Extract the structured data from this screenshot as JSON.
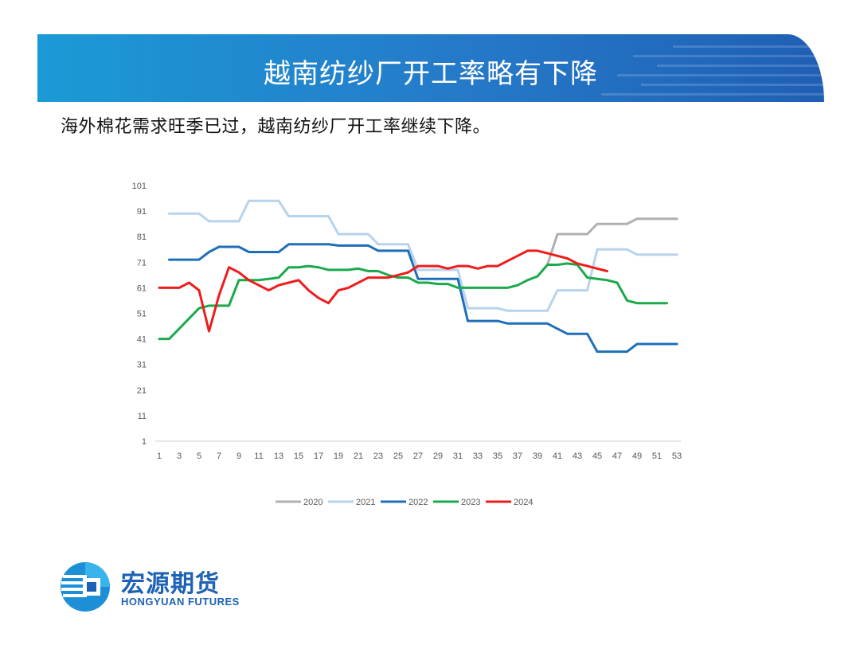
{
  "header": {
    "title": "越南纺纱厂开工率略有下降",
    "subtitle": "海外棉花需求旺季已过，越南纺纱厂开工率继续下降。"
  },
  "logo": {
    "name_cn": "宏源期货",
    "name_en": "HONGYUAN FUTURES"
  },
  "colors": {
    "banner": "#1f7fcf",
    "brand": "#1d62b5"
  },
  "chart_data": {
    "type": "line",
    "title": "",
    "xlabel": "",
    "ylabel": "",
    "ylim": [
      1,
      101
    ],
    "yticks": [
      1,
      11,
      21,
      31,
      41,
      51,
      61,
      71,
      81,
      91,
      101
    ],
    "xlim": [
      1,
      53
    ],
    "xticks": [
      1,
      3,
      5,
      7,
      9,
      11,
      13,
      15,
      17,
      19,
      21,
      23,
      25,
      27,
      29,
      31,
      33,
      35,
      37,
      39,
      41,
      43,
      45,
      47,
      49,
      51,
      53
    ],
    "grid": false,
    "legend": "bottom",
    "series": [
      {
        "name": "2020",
        "color": "#b0b0b0",
        "points": [
          [
            40,
            70
          ],
          [
            41,
            82
          ],
          [
            42,
            82
          ],
          [
            43,
            82
          ],
          [
            44,
            82
          ],
          [
            45,
            86
          ],
          [
            46,
            86
          ],
          [
            47,
            86
          ],
          [
            48,
            86
          ],
          [
            49,
            88
          ],
          [
            50,
            88
          ],
          [
            51,
            88
          ],
          [
            52,
            88
          ],
          [
            53,
            88
          ]
        ]
      },
      {
        "name": "2021",
        "color": "#b7d3ee",
        "points": [
          [
            2,
            90
          ],
          [
            3,
            90
          ],
          [
            4,
            90
          ],
          [
            5,
            90
          ],
          [
            6,
            87
          ],
          [
            7,
            87
          ],
          [
            8,
            87
          ],
          [
            9,
            87
          ],
          [
            10,
            95
          ],
          [
            11,
            95
          ],
          [
            12,
            95
          ],
          [
            13,
            95
          ],
          [
            14,
            89
          ],
          [
            15,
            89
          ],
          [
            16,
            89
          ],
          [
            17,
            89
          ],
          [
            18,
            89
          ],
          [
            19,
            82
          ],
          [
            20,
            82
          ],
          [
            21,
            82
          ],
          [
            22,
            82
          ],
          [
            23,
            78
          ],
          [
            24,
            78
          ],
          [
            25,
            78
          ],
          [
            26,
            78
          ],
          [
            27,
            68
          ],
          [
            28,
            68
          ],
          [
            29,
            68
          ],
          [
            30,
            68
          ],
          [
            31,
            68
          ],
          [
            32,
            53
          ],
          [
            33,
            53
          ],
          [
            34,
            53
          ],
          [
            35,
            53
          ],
          [
            36,
            52
          ],
          [
            37,
            52
          ],
          [
            38,
            52
          ],
          [
            39,
            52
          ],
          [
            40,
            52
          ],
          [
            41,
            60
          ],
          [
            42,
            60
          ],
          [
            43,
            60
          ],
          [
            44,
            60
          ],
          [
            45,
            76
          ],
          [
            46,
            76
          ],
          [
            47,
            76
          ],
          [
            48,
            76
          ],
          [
            49,
            74
          ],
          [
            50,
            74
          ],
          [
            51,
            74
          ],
          [
            52,
            74
          ],
          [
            53,
            74
          ]
        ]
      },
      {
        "name": "2022",
        "color": "#1f6fb8",
        "points": [
          [
            2,
            72
          ],
          [
            3,
            72
          ],
          [
            4,
            72
          ],
          [
            5,
            72
          ],
          [
            6,
            75
          ],
          [
            7,
            77
          ],
          [
            8,
            77
          ],
          [
            9,
            77
          ],
          [
            10,
            75
          ],
          [
            11,
            75
          ],
          [
            12,
            75
          ],
          [
            13,
            75
          ],
          [
            14,
            78
          ],
          [
            15,
            78
          ],
          [
            16,
            78
          ],
          [
            17,
            78
          ],
          [
            18,
            78
          ],
          [
            19,
            77.5
          ],
          [
            20,
            77.5
          ],
          [
            21,
            77.5
          ],
          [
            22,
            77.5
          ],
          [
            23,
            75.5
          ],
          [
            24,
            75.5
          ],
          [
            25,
            75.5
          ],
          [
            26,
            75.5
          ],
          [
            27,
            64.5
          ],
          [
            28,
            64.5
          ],
          [
            29,
            64.5
          ],
          [
            30,
            64.5
          ],
          [
            31,
            64.5
          ],
          [
            32,
            48
          ],
          [
            33,
            48
          ],
          [
            34,
            48
          ],
          [
            35,
            48
          ],
          [
            36,
            47
          ],
          [
            37,
            47
          ],
          [
            38,
            47
          ],
          [
            39,
            47
          ],
          [
            40,
            47
          ],
          [
            41,
            45
          ],
          [
            42,
            43
          ],
          [
            43,
            43
          ],
          [
            44,
            43
          ],
          [
            45,
            36
          ],
          [
            46,
            36
          ],
          [
            47,
            36
          ],
          [
            48,
            36
          ],
          [
            49,
            39
          ],
          [
            50,
            39
          ],
          [
            51,
            39
          ],
          [
            52,
            39
          ],
          [
            53,
            39
          ]
        ]
      },
      {
        "name": "2023",
        "color": "#1aaa4b",
        "points": [
          [
            1,
            41
          ],
          [
            2,
            41
          ],
          [
            3,
            45
          ],
          [
            4,
            49
          ],
          [
            5,
            53
          ],
          [
            6,
            54
          ],
          [
            7,
            54
          ],
          [
            8,
            54
          ],
          [
            9,
            64
          ],
          [
            10,
            64
          ],
          [
            11,
            64
          ],
          [
            12,
            64.5
          ],
          [
            13,
            65
          ],
          [
            14,
            69
          ],
          [
            15,
            69
          ],
          [
            16,
            69.5
          ],
          [
            17,
            69
          ],
          [
            18,
            68
          ],
          [
            19,
            68
          ],
          [
            20,
            68
          ],
          [
            21,
            68.5
          ],
          [
            22,
            67.5
          ],
          [
            23,
            67.5
          ],
          [
            24,
            66
          ],
          [
            25,
            65
          ],
          [
            26,
            65
          ],
          [
            27,
            63
          ],
          [
            28,
            63
          ],
          [
            29,
            62.5
          ],
          [
            30,
            62.5
          ],
          [
            31,
            61
          ],
          [
            32,
            61
          ],
          [
            33,
            61
          ],
          [
            34,
            61
          ],
          [
            35,
            61
          ],
          [
            36,
            61
          ],
          [
            37,
            62
          ],
          [
            38,
            64
          ],
          [
            39,
            65.5
          ],
          [
            40,
            70
          ],
          [
            41,
            70
          ],
          [
            42,
            70.5
          ],
          [
            43,
            70
          ],
          [
            44,
            65
          ],
          [
            45,
            64.5
          ],
          [
            46,
            64
          ],
          [
            47,
            63
          ],
          [
            48,
            56
          ],
          [
            49,
            55
          ],
          [
            50,
            55
          ],
          [
            51,
            55
          ],
          [
            52,
            55
          ]
        ]
      },
      {
        "name": "2024",
        "color": "#ee1c1c",
        "points": [
          [
            1,
            61
          ],
          [
            2,
            61
          ],
          [
            3,
            61
          ],
          [
            4,
            63
          ],
          [
            5,
            60
          ],
          [
            6,
            44
          ],
          [
            7,
            58
          ],
          [
            8,
            69
          ],
          [
            9,
            67
          ],
          [
            10,
            64
          ],
          [
            11,
            62
          ],
          [
            12,
            60
          ],
          [
            13,
            62
          ],
          [
            14,
            63
          ],
          [
            15,
            64
          ],
          [
            16,
            60
          ],
          [
            17,
            57
          ],
          [
            18,
            55
          ],
          [
            19,
            60
          ],
          [
            20,
            61
          ],
          [
            21,
            63
          ],
          [
            22,
            65
          ],
          [
            23,
            65
          ],
          [
            24,
            65
          ],
          [
            25,
            66
          ],
          [
            26,
            67
          ],
          [
            27,
            69.5
          ],
          [
            28,
            69.5
          ],
          [
            29,
            69.5
          ],
          [
            30,
            68.5
          ],
          [
            31,
            69.5
          ],
          [
            32,
            69.5
          ],
          [
            33,
            68.5
          ],
          [
            34,
            69.5
          ],
          [
            35,
            69.5
          ],
          [
            36,
            71.5
          ],
          [
            37,
            73.5
          ],
          [
            38,
            75.5
          ],
          [
            39,
            75.5
          ],
          [
            40,
            74.5
          ],
          [
            41,
            73.5
          ],
          [
            42,
            72.5
          ],
          [
            43,
            70.5
          ],
          [
            44,
            69.5
          ],
          [
            45,
            68.5
          ],
          [
            46,
            67.5
          ]
        ]
      }
    ]
  }
}
